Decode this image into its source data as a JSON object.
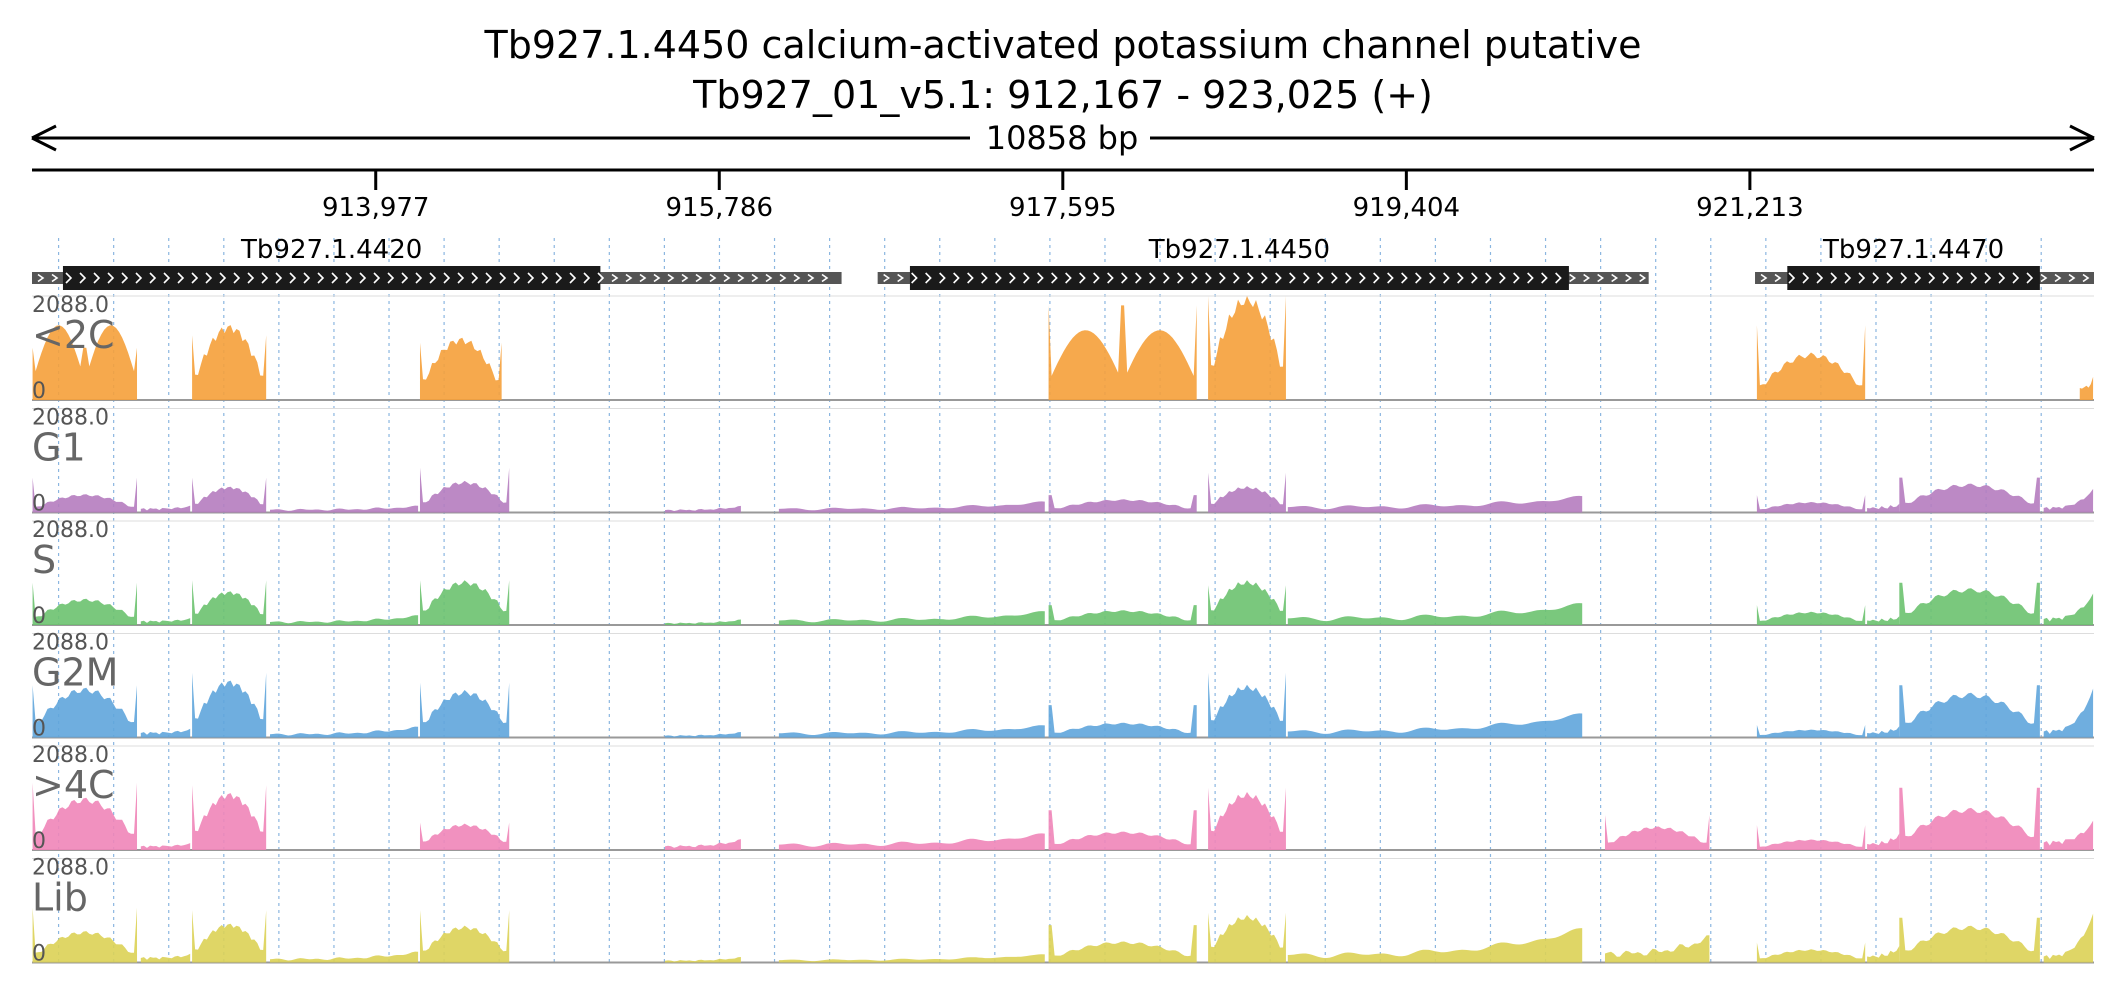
{
  "header": {
    "title_line1": "Tb927.1.4450  calcium-activated potassium channel  putative",
    "title_line2": "Tb927_01_v5.1: 912,167 - 923,025 (+)"
  },
  "chart_data": {
    "type": "area",
    "region": {
      "chrom": "Tb927_01_v5.1",
      "start": 912167,
      "end": 923025,
      "strand": "+",
      "length_label": "10858 bp"
    },
    "x_axis_ticks": [
      {
        "value": 913977,
        "label": "913,977"
      },
      {
        "value": 915786,
        "label": "915,786"
      },
      {
        "value": 917595,
        "label": "917,595"
      },
      {
        "value": 919404,
        "label": "919,404"
      },
      {
        "value": 921213,
        "label": "921,213"
      }
    ],
    "genes": [
      {
        "name": "Tb927.1.4420",
        "utr_start": 912167,
        "utr_end": 916430,
        "cds_start": 912330,
        "cds_end": 915160
      },
      {
        "name": "Tb927.1.4450",
        "utr_start": 916620,
        "utr_end": 920680,
        "cds_start": 916790,
        "cds_end": 920260
      },
      {
        "name": "Tb927.1.4470",
        "utr_start": 921240,
        "utr_end": 923025,
        "cds_start": 921410,
        "cds_end": 922740
      }
    ],
    "y_max_label": "2088.0",
    "y_min_label": "0",
    "ylim": [
      0,
      2088
    ],
    "tracks": [
      {
        "name": "<2C",
        "color": "#f5a03a",
        "blocks": [
          {
            "start": 912170,
            "end": 912720,
            "pattern": "bimodal",
            "peak": 1500,
            "edge": 1050
          },
          {
            "start": 913010,
            "end": 913400,
            "pattern": "hump",
            "peak": 1450,
            "edge": 1300
          },
          {
            "start": 914210,
            "end": 914640,
            "pattern": "hump",
            "peak": 1200,
            "edge": 1150
          },
          {
            "start": 917520,
            "end": 918300,
            "pattern": "bimodal",
            "peak": 1400,
            "edge": 1900
          },
          {
            "start": 918360,
            "end": 918770,
            "pattern": "hump",
            "peak": 2000,
            "edge": 2088
          },
          {
            "start": 921250,
            "end": 921820,
            "pattern": "hump",
            "peak": 900,
            "edge": 1500
          },
          {
            "start": 922950,
            "end": 923020,
            "pattern": "flat",
            "peak": 400,
            "edge": 400
          }
        ]
      },
      {
        "name": "G1",
        "color": "#b57cbf",
        "blocks": [
          {
            "start": 912170,
            "end": 912720,
            "pattern": "hump",
            "peak": 350,
            "edge": 700
          },
          {
            "start": 912740,
            "end": 913000,
            "pattern": "flat",
            "peak": 120,
            "edge": 120
          },
          {
            "start": 913010,
            "end": 913400,
            "pattern": "hump",
            "peak": 500,
            "edge": 700
          },
          {
            "start": 913420,
            "end": 914200,
            "pattern": "flat",
            "peak": 90,
            "edge": 120
          },
          {
            "start": 914210,
            "end": 914680,
            "pattern": "hump",
            "peak": 600,
            "edge": 900
          },
          {
            "start": 915500,
            "end": 915900,
            "pattern": "flat",
            "peak": 80,
            "edge": 120
          },
          {
            "start": 916100,
            "end": 917500,
            "pattern": "flat",
            "peak": 120,
            "edge": 200
          },
          {
            "start": 917520,
            "end": 918300,
            "pattern": "hump",
            "peak": 250,
            "edge": 350
          },
          {
            "start": 918360,
            "end": 918770,
            "pattern": "hump",
            "peak": 500,
            "edge": 800
          },
          {
            "start": 918780,
            "end": 920330,
            "pattern": "flat",
            "peak": 180,
            "edge": 300
          },
          {
            "start": 921250,
            "end": 921820,
            "pattern": "hump",
            "peak": 200,
            "edge": 350
          },
          {
            "start": 921830,
            "end": 922000,
            "pattern": "flat",
            "peak": 150,
            "edge": 150
          },
          {
            "start": 922000,
            "end": 922740,
            "pattern": "hump",
            "peak": 550,
            "edge": 700
          },
          {
            "start": 922760,
            "end": 923020,
            "pattern": "flat",
            "peak": 150,
            "edge": 450
          }
        ]
      },
      {
        "name": "S",
        "color": "#6cc26f",
        "blocks": [
          {
            "start": 912170,
            "end": 912720,
            "pattern": "hump",
            "peak": 500,
            "edge": 850
          },
          {
            "start": 912740,
            "end": 913000,
            "pattern": "flat",
            "peak": 120,
            "edge": 120
          },
          {
            "start": 913010,
            "end": 913400,
            "pattern": "hump",
            "peak": 650,
            "edge": 900
          },
          {
            "start": 913420,
            "end": 914200,
            "pattern": "flat",
            "peak": 100,
            "edge": 180
          },
          {
            "start": 914210,
            "end": 914680,
            "pattern": "hump",
            "peak": 850,
            "edge": 900
          },
          {
            "start": 915500,
            "end": 915900,
            "pattern": "flat",
            "peak": 60,
            "edge": 100
          },
          {
            "start": 916100,
            "end": 917500,
            "pattern": "flat",
            "peak": 150,
            "edge": 250
          },
          {
            "start": 917520,
            "end": 918300,
            "pattern": "hump",
            "peak": 280,
            "edge": 400
          },
          {
            "start": 918360,
            "end": 918770,
            "pattern": "hump",
            "peak": 850,
            "edge": 800
          },
          {
            "start": 918780,
            "end": 920330,
            "pattern": "flat",
            "peak": 220,
            "edge": 400
          },
          {
            "start": 921250,
            "end": 921820,
            "pattern": "hump",
            "peak": 250,
            "edge": 400
          },
          {
            "start": 921830,
            "end": 922000,
            "pattern": "flat",
            "peak": 150,
            "edge": 150
          },
          {
            "start": 922000,
            "end": 922740,
            "pattern": "hump",
            "peak": 700,
            "edge": 850
          },
          {
            "start": 922760,
            "end": 923020,
            "pattern": "flat",
            "peak": 200,
            "edge": 600
          }
        ]
      },
      {
        "name": "G2M",
        "color": "#5fa5dc",
        "blocks": [
          {
            "start": 912170,
            "end": 912720,
            "pattern": "hump",
            "peak": 950,
            "edge": 1050
          },
          {
            "start": 912740,
            "end": 913000,
            "pattern": "flat",
            "peak": 150,
            "edge": 150
          },
          {
            "start": 913010,
            "end": 913400,
            "pattern": "hump",
            "peak": 1100,
            "edge": 1300
          },
          {
            "start": 913420,
            "end": 914200,
            "pattern": "flat",
            "peak": 110,
            "edge": 200
          },
          {
            "start": 914210,
            "end": 914680,
            "pattern": "hump",
            "peak": 900,
            "edge": 1100
          },
          {
            "start": 915500,
            "end": 915900,
            "pattern": "flat",
            "peak": 60,
            "edge": 100
          },
          {
            "start": 916100,
            "end": 917500,
            "pattern": "flat",
            "peak": 140,
            "edge": 220
          },
          {
            "start": 917520,
            "end": 918300,
            "pattern": "hump",
            "peak": 280,
            "edge": 650
          },
          {
            "start": 918360,
            "end": 918770,
            "pattern": "hump",
            "peak": 1000,
            "edge": 1300
          },
          {
            "start": 918780,
            "end": 920330,
            "pattern": "flat",
            "peak": 200,
            "edge": 450
          },
          {
            "start": 921250,
            "end": 921820,
            "pattern": "hump",
            "peak": 150,
            "edge": 250
          },
          {
            "start": 921830,
            "end": 922000,
            "pattern": "flat",
            "peak": 150,
            "edge": 200
          },
          {
            "start": 922000,
            "end": 922740,
            "pattern": "hump",
            "peak": 850,
            "edge": 1050
          },
          {
            "start": 922760,
            "end": 923020,
            "pattern": "flat",
            "peak": 200,
            "edge": 950
          }
        ]
      },
      {
        "name": ">4C",
        "color": "#ef85b8",
        "blocks": [
          {
            "start": 912170,
            "end": 912720,
            "pattern": "hump",
            "peak": 1000,
            "edge": 1350
          },
          {
            "start": 912740,
            "end": 913000,
            "pattern": "flat",
            "peak": 120,
            "edge": 120
          },
          {
            "start": 913010,
            "end": 913400,
            "pattern": "hump",
            "peak": 1100,
            "edge": 1300
          },
          {
            "start": 914210,
            "end": 914680,
            "pattern": "hump",
            "peak": 500,
            "edge": 550
          },
          {
            "start": 915500,
            "end": 915900,
            "pattern": "flat",
            "peak": 120,
            "edge": 200
          },
          {
            "start": 916100,
            "end": 917500,
            "pattern": "flat",
            "peak": 180,
            "edge": 300
          },
          {
            "start": 917520,
            "end": 918300,
            "pattern": "hump",
            "peak": 350,
            "edge": 800
          },
          {
            "start": 918360,
            "end": 918770,
            "pattern": "hump",
            "peak": 1100,
            "edge": 1250
          },
          {
            "start": 920450,
            "end": 921000,
            "pattern": "hump",
            "peak": 450,
            "edge": 700
          },
          {
            "start": 921250,
            "end": 921820,
            "pattern": "hump",
            "peak": 200,
            "edge": 500
          },
          {
            "start": 921830,
            "end": 922000,
            "pattern": "flat",
            "peak": 200,
            "edge": 300
          },
          {
            "start": 922000,
            "end": 922740,
            "pattern": "hump",
            "peak": 800,
            "edge": 1250
          },
          {
            "start": 922760,
            "end": 923020,
            "pattern": "flat",
            "peak": 250,
            "edge": 550
          }
        ]
      },
      {
        "name": "Lib",
        "color": "#dcd155",
        "blocks": [
          {
            "start": 912170,
            "end": 912720,
            "pattern": "hump",
            "peak": 600,
            "edge": 1100
          },
          {
            "start": 912740,
            "end": 913000,
            "pattern": "flat",
            "peak": 150,
            "edge": 150
          },
          {
            "start": 913010,
            "end": 913400,
            "pattern": "hump",
            "peak": 750,
            "edge": 1050
          },
          {
            "start": 913420,
            "end": 914200,
            "pattern": "flat",
            "peak": 110,
            "edge": 200
          },
          {
            "start": 914210,
            "end": 914680,
            "pattern": "hump",
            "peak": 700,
            "edge": 1050
          },
          {
            "start": 915500,
            "end": 915900,
            "pattern": "flat",
            "peak": 60,
            "edge": 100
          },
          {
            "start": 916100,
            "end": 917500,
            "pattern": "flat",
            "peak": 80,
            "edge": 150
          },
          {
            "start": 917520,
            "end": 918300,
            "pattern": "hump",
            "peak": 400,
            "edge": 750
          },
          {
            "start": 918360,
            "end": 918770,
            "pattern": "hump",
            "peak": 900,
            "edge": 1000
          },
          {
            "start": 918780,
            "end": 920330,
            "pattern": "flat",
            "peak": 250,
            "edge": 650
          },
          {
            "start": 920450,
            "end": 921000,
            "pattern": "flat",
            "peak": 300,
            "edge": 500
          },
          {
            "start": 921250,
            "end": 921820,
            "pattern": "hump",
            "peak": 250,
            "edge": 400
          },
          {
            "start": 921830,
            "end": 922000,
            "pattern": "flat",
            "peak": 200,
            "edge": 300
          },
          {
            "start": 922000,
            "end": 922740,
            "pattern": "hump",
            "peak": 700,
            "edge": 900
          },
          {
            "start": 922760,
            "end": 923020,
            "pattern": "flat",
            "peak": 200,
            "edge": 950
          }
        ]
      }
    ]
  }
}
